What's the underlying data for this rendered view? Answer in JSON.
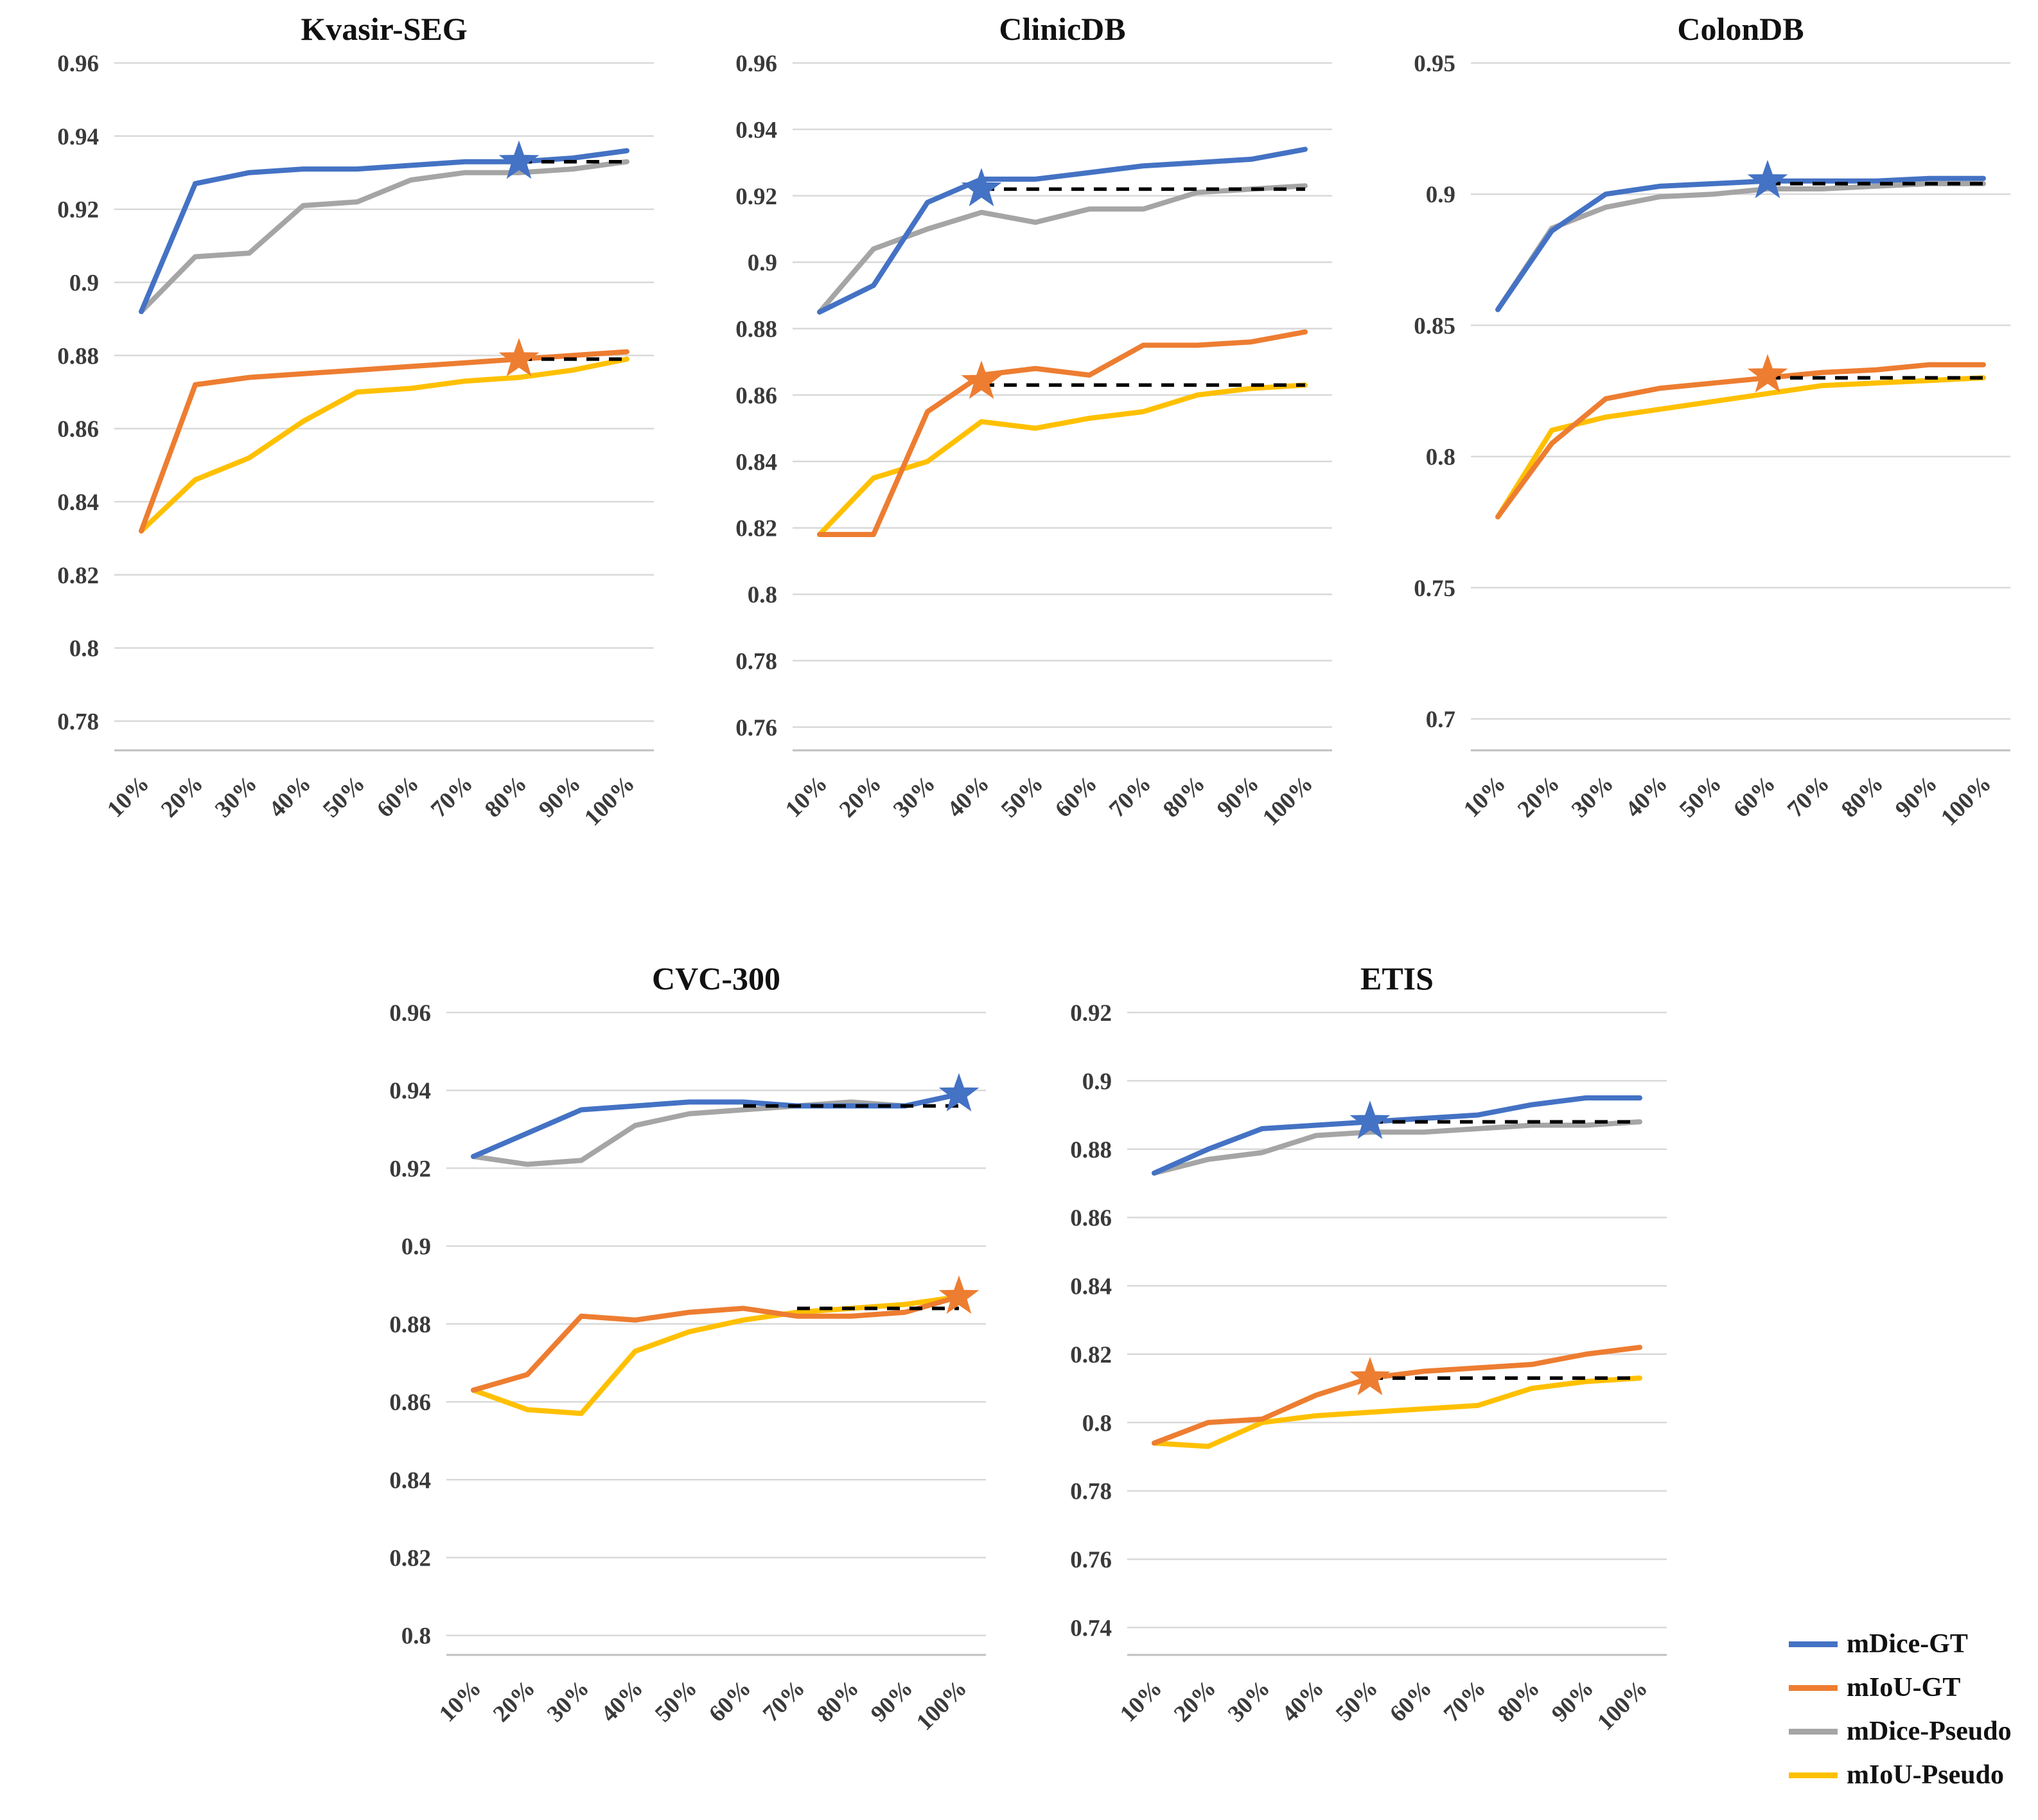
{
  "page": {
    "background": "#ffffff"
  },
  "style": {
    "grid_color": "#d9d9d9",
    "axis_color": "#bfbfbf",
    "dashed_color": "#000000",
    "label_color": "#3a3a3a"
  },
  "legend": {
    "items": [
      {
        "label": "mDice-GT",
        "color": "#4472c4"
      },
      {
        "label": "mIoU-GT",
        "color": "#ed7d31"
      },
      {
        "label": "mDice-Pseudo",
        "color": "#a5a5a5"
      },
      {
        "label": "mIoU-Pseudo",
        "color": "#ffc000"
      }
    ]
  },
  "chart_data": [
    {
      "type": "line",
      "title": "Kvasir-SEG",
      "categories": [
        "10%",
        "20%",
        "30%",
        "40%",
        "50%",
        "60%",
        "70%",
        "80%",
        "90%",
        "100%"
      ],
      "ylim": [
        0.772,
        0.96
      ],
      "yticks": [
        "0.96",
        "0.94",
        "0.92",
        "0.9",
        "0.88",
        "0.86",
        "0.84",
        "0.82",
        "0.8",
        "0.78"
      ],
      "series": [
        {
          "name": "mDice-GT",
          "color": "#4472c4",
          "values": [
            0.892,
            0.927,
            0.93,
            0.931,
            0.931,
            0.932,
            0.933,
            0.933,
            0.934,
            0.936
          ]
        },
        {
          "name": "mIoU-GT",
          "color": "#ed7d31",
          "values": [
            0.832,
            0.872,
            0.874,
            0.875,
            0.876,
            0.877,
            0.878,
            0.879,
            0.88,
            0.881
          ]
        },
        {
          "name": "mDice-Pseudo",
          "color": "#a5a5a5",
          "values": [
            0.892,
            0.907,
            0.908,
            0.921,
            0.922,
            0.928,
            0.93,
            0.93,
            0.931,
            0.933
          ]
        },
        {
          "name": "mIoU-Pseudo",
          "color": "#ffc000",
          "values": [
            0.832,
            0.846,
            0.852,
            0.862,
            0.87,
            0.871,
            0.873,
            0.874,
            0.876,
            0.879
          ]
        }
      ],
      "dashed_lines": [
        {
          "from_category": "80%",
          "to_category": "100%",
          "value": 0.933
        },
        {
          "from_category": "80%",
          "to_category": "100%",
          "value": 0.879
        }
      ],
      "stars": [
        {
          "category": "80%",
          "value": 0.933,
          "color": "#4472c4"
        },
        {
          "category": "80%",
          "value": 0.879,
          "color": "#ed7d31"
        }
      ]
    },
    {
      "type": "line",
      "title": "ClinicDB",
      "categories": [
        "10%",
        "20%",
        "30%",
        "40%",
        "50%",
        "60%",
        "70%",
        "80%",
        "90%",
        "100%"
      ],
      "ylim": [
        0.753,
        0.96
      ],
      "yticks": [
        "0.96",
        "0.94",
        "0.92",
        "0.9",
        "0.88",
        "0.86",
        "0.84",
        "0.82",
        "0.8",
        "0.78",
        "0.76"
      ],
      "series": [
        {
          "name": "mDice-GT",
          "color": "#4472c4",
          "values": [
            0.885,
            0.893,
            0.918,
            0.925,
            0.925,
            0.927,
            0.929,
            0.93,
            0.931,
            0.934
          ]
        },
        {
          "name": "mIoU-GT",
          "color": "#ed7d31",
          "values": [
            0.818,
            0.818,
            0.855,
            0.866,
            0.868,
            0.866,
            0.875,
            0.875,
            0.876,
            0.879
          ]
        },
        {
          "name": "mDice-Pseudo",
          "color": "#a5a5a5",
          "values": [
            0.885,
            0.904,
            0.91,
            0.915,
            0.912,
            0.916,
            0.916,
            0.921,
            0.922,
            0.923
          ]
        },
        {
          "name": "mIoU-Pseudo",
          "color": "#ffc000",
          "values": [
            0.818,
            0.835,
            0.84,
            0.852,
            0.85,
            0.853,
            0.855,
            0.86,
            0.862,
            0.863
          ]
        }
      ],
      "dashed_lines": [
        {
          "from_category": "40%",
          "to_category": "100%",
          "value": 0.922
        },
        {
          "from_category": "40%",
          "to_category": "100%",
          "value": 0.863
        }
      ],
      "stars": [
        {
          "category": "40%",
          "value": 0.922,
          "color": "#4472c4"
        },
        {
          "category": "40%",
          "value": 0.864,
          "color": "#ed7d31"
        }
      ]
    },
    {
      "type": "line",
      "title": "ColonDB",
      "categories": [
        "10%",
        "20%",
        "30%",
        "40%",
        "50%",
        "60%",
        "70%",
        "80%",
        "90%",
        "100%"
      ],
      "ylim": [
        0.688,
        0.95
      ],
      "yticks": [
        "0.95",
        "0.9",
        "0.85",
        "0.8",
        "0.75",
        "0.7"
      ],
      "series": [
        {
          "name": "mDice-GT",
          "color": "#4472c4",
          "values": [
            0.856,
            0.886,
            0.9,
            0.903,
            0.904,
            0.905,
            0.905,
            0.905,
            0.906,
            0.906
          ]
        },
        {
          "name": "mIoU-GT",
          "color": "#ed7d31",
          "values": [
            0.777,
            0.805,
            0.822,
            0.826,
            0.828,
            0.83,
            0.832,
            0.833,
            0.835,
            0.835
          ]
        },
        {
          "name": "mDice-Pseudo",
          "color": "#a5a5a5",
          "values": [
            0.856,
            0.887,
            0.895,
            0.899,
            0.9,
            0.902,
            0.902,
            0.903,
            0.904,
            0.904
          ]
        },
        {
          "name": "mIoU-Pseudo",
          "color": "#ffc000",
          "values": [
            0.777,
            0.81,
            0.815,
            0.818,
            0.821,
            0.824,
            0.827,
            0.828,
            0.829,
            0.83
          ]
        }
      ],
      "dashed_lines": [
        {
          "from_category": "60%",
          "to_category": "100%",
          "value": 0.904
        },
        {
          "from_category": "60%",
          "to_category": "100%",
          "value": 0.83
        }
      ],
      "stars": [
        {
          "category": "60%",
          "value": 0.905,
          "color": "#4472c4"
        },
        {
          "category": "60%",
          "value": 0.831,
          "color": "#ed7d31"
        }
      ]
    },
    {
      "type": "line",
      "title": "CVC-300",
      "categories": [
        "10%",
        "20%",
        "30%",
        "40%",
        "50%",
        "60%",
        "70%",
        "80%",
        "90%",
        "100%"
      ],
      "ylim": [
        0.795,
        0.96
      ],
      "yticks": [
        "0.96",
        "0.94",
        "0.92",
        "0.9",
        "0.88",
        "0.86",
        "0.84",
        "0.82",
        "0.8"
      ],
      "series": [
        {
          "name": "mDice-GT",
          "color": "#4472c4",
          "values": [
            0.923,
            0.929,
            0.935,
            0.936,
            0.937,
            0.937,
            0.936,
            0.936,
            0.936,
            0.939
          ]
        },
        {
          "name": "mIoU-GT",
          "color": "#ed7d31",
          "values": [
            0.863,
            0.867,
            0.882,
            0.881,
            0.883,
            0.884,
            0.882,
            0.882,
            0.883,
            0.887
          ]
        },
        {
          "name": "mDice-Pseudo",
          "color": "#a5a5a5",
          "values": [
            0.923,
            0.921,
            0.922,
            0.931,
            0.934,
            0.935,
            0.936,
            0.937,
            0.936,
            0.939
          ]
        },
        {
          "name": "mIoU-Pseudo",
          "color": "#ffc000",
          "values": [
            0.863,
            0.858,
            0.857,
            0.873,
            0.878,
            0.881,
            0.883,
            0.884,
            0.885,
            0.887
          ]
        }
      ],
      "dashed_lines": [
        {
          "from_category": "60%",
          "to_category": "100%",
          "value": 0.936
        },
        {
          "from_category": "70%",
          "to_category": "100%",
          "value": 0.884
        }
      ],
      "stars": [
        {
          "category": "100%",
          "value": 0.939,
          "color": "#4472c4"
        },
        {
          "category": "100%",
          "value": 0.887,
          "color": "#ed7d31"
        }
      ]
    },
    {
      "type": "line",
      "title": "ETIS",
      "categories": [
        "10%",
        "20%",
        "30%",
        "40%",
        "50%",
        "60%",
        "70%",
        "80%",
        "90%",
        "100%"
      ],
      "ylim": [
        0.732,
        0.92
      ],
      "yticks": [
        "0.92",
        "0.9",
        "0.88",
        "0.86",
        "0.84",
        "0.82",
        "0.8",
        "0.78",
        "0.76",
        "0.74"
      ],
      "series": [
        {
          "name": "mDice-GT",
          "color": "#4472c4",
          "values": [
            0.873,
            0.88,
            0.886,
            0.887,
            0.888,
            0.889,
            0.89,
            0.893,
            0.895,
            0.895
          ]
        },
        {
          "name": "mIoU-GT",
          "color": "#ed7d31",
          "values": [
            0.794,
            0.8,
            0.801,
            0.808,
            0.813,
            0.815,
            0.816,
            0.817,
            0.82,
            0.822
          ]
        },
        {
          "name": "mDice-Pseudo",
          "color": "#a5a5a5",
          "values": [
            0.873,
            0.877,
            0.879,
            0.884,
            0.885,
            0.885,
            0.886,
            0.887,
            0.887,
            0.888
          ]
        },
        {
          "name": "mIoU-Pseudo",
          "color": "#ffc000",
          "values": [
            0.794,
            0.793,
            0.8,
            0.802,
            0.803,
            0.804,
            0.805,
            0.81,
            0.812,
            0.813
          ]
        }
      ],
      "dashed_lines": [
        {
          "from_category": "50%",
          "to_category": "100%",
          "value": 0.888
        },
        {
          "from_category": "50%",
          "to_category": "100%",
          "value": 0.813
        }
      ],
      "stars": [
        {
          "category": "50%",
          "value": 0.888,
          "color": "#4472c4"
        },
        {
          "category": "50%",
          "value": 0.813,
          "color": "#ed7d31"
        }
      ]
    }
  ]
}
